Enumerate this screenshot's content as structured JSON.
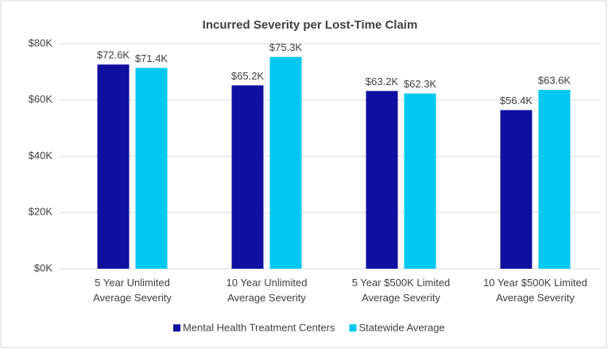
{
  "chart_data": {
    "type": "bar",
    "title": "Incurred Severity per Lost-Time Claim",
    "categories": [
      "5 Year Unlimited\nAverage Severity",
      "10 Year Unlimited\nAverage Severity",
      "5 Year $500K Limited\nAverage Severity",
      "10 Year $500K Limited\nAverage Severity"
    ],
    "series": [
      {
        "name": "Mental Health Treatment Centers",
        "color": "#0f0fa0",
        "values": [
          72600,
          65200,
          63200,
          56400
        ],
        "value_labels": [
          "$72.6K",
          "$65.2K",
          "$63.2K",
          "$56.4K"
        ]
      },
      {
        "name": "Statewide Average",
        "color": "#00c8f0",
        "values": [
          71400,
          75300,
          62300,
          63600
        ],
        "value_labels": [
          "$71.4K",
          "$75.3K",
          "$62.3K",
          "$63.6K"
        ]
      }
    ],
    "ylim": [
      0,
      80000
    ],
    "yticks": [
      {
        "value": 0,
        "label": "$0K"
      },
      {
        "value": 20000,
        "label": "$20K"
      },
      {
        "value": 40000,
        "label": "$40K"
      },
      {
        "value": 60000,
        "label": "$60K"
      },
      {
        "value": 80000,
        "label": "$80K"
      }
    ],
    "grid": true,
    "legend": "bottom"
  }
}
